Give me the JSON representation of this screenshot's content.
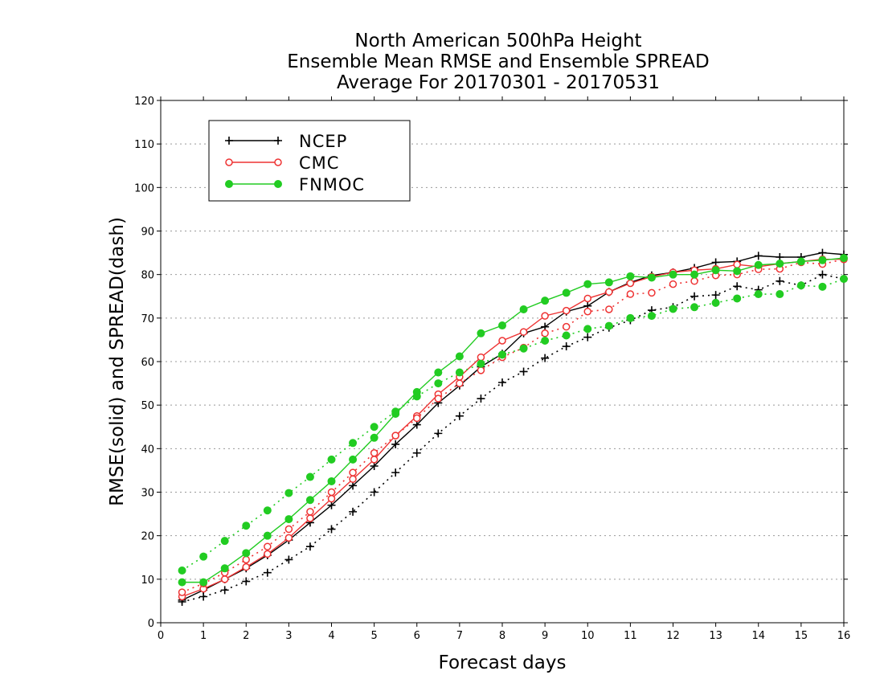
{
  "chart_data": {
    "type": "line",
    "title": [
      "North American 500hPa Height",
      "Ensemble Mean RMSE and Ensemble SPREAD",
      "Average For 20170301 - 20170531"
    ],
    "xlabel": "Forecast days",
    "ylabel": "RMSE(solid) and SPREAD(dash)",
    "xlim": [
      0,
      16
    ],
    "ylim": [
      0,
      120
    ],
    "xticks": [
      0,
      1,
      2,
      3,
      4,
      5,
      6,
      7,
      8,
      9,
      10,
      11,
      12,
      13,
      14,
      15,
      16
    ],
    "yticks": [
      0,
      10,
      20,
      30,
      40,
      50,
      60,
      70,
      80,
      90,
      100,
      110,
      120
    ],
    "grid": "horizontal dotted",
    "legend_position": "top-left",
    "x": [
      0.5,
      1,
      1.5,
      2,
      2.5,
      3,
      3.5,
      4,
      4.5,
      5,
      5.5,
      6,
      6.5,
      7,
      7.5,
      8,
      8.5,
      9,
      9.5,
      10,
      10.5,
      11,
      11.5,
      12,
      12.5,
      13,
      13.5,
      14,
      14.5,
      15,
      15.5,
      16
    ],
    "series": [
      {
        "name": "NCEP",
        "metric": "RMSE",
        "style": "solid",
        "color": "#000000",
        "marker": "plus",
        "values": [
          5.2,
          7.5,
          10,
          12.5,
          15.5,
          19,
          23,
          27,
          31.5,
          36,
          41,
          45.5,
          50.5,
          54.5,
          58.8,
          61.8,
          66.5,
          68,
          71.5,
          72.8,
          76,
          78.2,
          79.8,
          80.5,
          81.5,
          82.8,
          83,
          84.3,
          84,
          84,
          85,
          84.6
        ]
      },
      {
        "name": "NCEP",
        "metric": "SPREAD",
        "style": "dotted",
        "color": "#000000",
        "marker": "plus",
        "values": [
          4.8,
          6,
          7.5,
          9.5,
          11.5,
          14.5,
          17.5,
          21.5,
          25.5,
          30,
          34.5,
          39,
          43.5,
          47.5,
          51.5,
          55.2,
          57.7,
          60.8,
          63.5,
          65.6,
          67.8,
          69.5,
          71.8,
          72.5,
          75,
          75.3,
          77.3,
          76.5,
          78.5,
          77.5,
          80,
          79
        ]
      },
      {
        "name": "CMC",
        "metric": "RMSE",
        "style": "solid",
        "color": "#ee3333",
        "marker": "circle-open",
        "values": [
          6,
          7.8,
          10,
          12.8,
          15.8,
          19.5,
          24,
          28.5,
          33,
          37.5,
          43,
          47.5,
          52.5,
          56.5,
          61,
          64.8,
          66.8,
          70.5,
          71.7,
          74.5,
          76,
          78,
          79.5,
          80.5,
          81,
          81.3,
          82.3,
          81.8,
          82.5,
          83,
          83.5,
          83.5
        ]
      },
      {
        "name": "CMC",
        "metric": "SPREAD",
        "style": "dotted",
        "color": "#ee3333",
        "marker": "circle-open",
        "values": [
          7,
          9,
          11.5,
          14.5,
          17.5,
          21.5,
          25.5,
          30,
          34.5,
          39,
          43,
          47,
          51.5,
          55,
          58,
          61,
          63.2,
          66.5,
          68,
          71.5,
          72,
          75.5,
          75.8,
          77.8,
          78.5,
          79.8,
          80,
          81.2,
          81.3,
          82.8,
          82.4,
          83.5
        ]
      },
      {
        "name": "FNMOC",
        "metric": "RMSE",
        "style": "solid",
        "color": "#22cc22",
        "marker": "circle-filled",
        "values": [
          9.3,
          9.3,
          12.5,
          16,
          20,
          23.8,
          28.2,
          32.5,
          37.5,
          42.5,
          48,
          53,
          57.5,
          61.2,
          66.5,
          68.3,
          72,
          74,
          75.8,
          77.8,
          78.2,
          79.6,
          79.3,
          80,
          80,
          81,
          80.8,
          82.2,
          82.5,
          83,
          83.3,
          83.8
        ]
      },
      {
        "name": "FNMOC",
        "metric": "SPREAD",
        "style": "dotted",
        "color": "#22cc22",
        "marker": "circle-filled",
        "values": [
          12,
          15.2,
          18.8,
          22.3,
          25.8,
          29.8,
          33.5,
          37.5,
          41.3,
          45,
          48.5,
          52,
          55,
          57.5,
          59.5,
          61.6,
          63,
          64.8,
          66,
          67.5,
          68.2,
          70,
          70.5,
          72.1,
          72.5,
          73.5,
          74.5,
          75.5,
          75.5,
          77.5,
          77.2,
          79
        ]
      }
    ],
    "legend": [
      {
        "label": "NCEP",
        "color": "#000000",
        "marker": "plus"
      },
      {
        "label": "CMC",
        "color": "#ee3333",
        "marker": "circle-open"
      },
      {
        "label": "FNMOC",
        "color": "#22cc22",
        "marker": "circle-filled"
      }
    ]
  }
}
